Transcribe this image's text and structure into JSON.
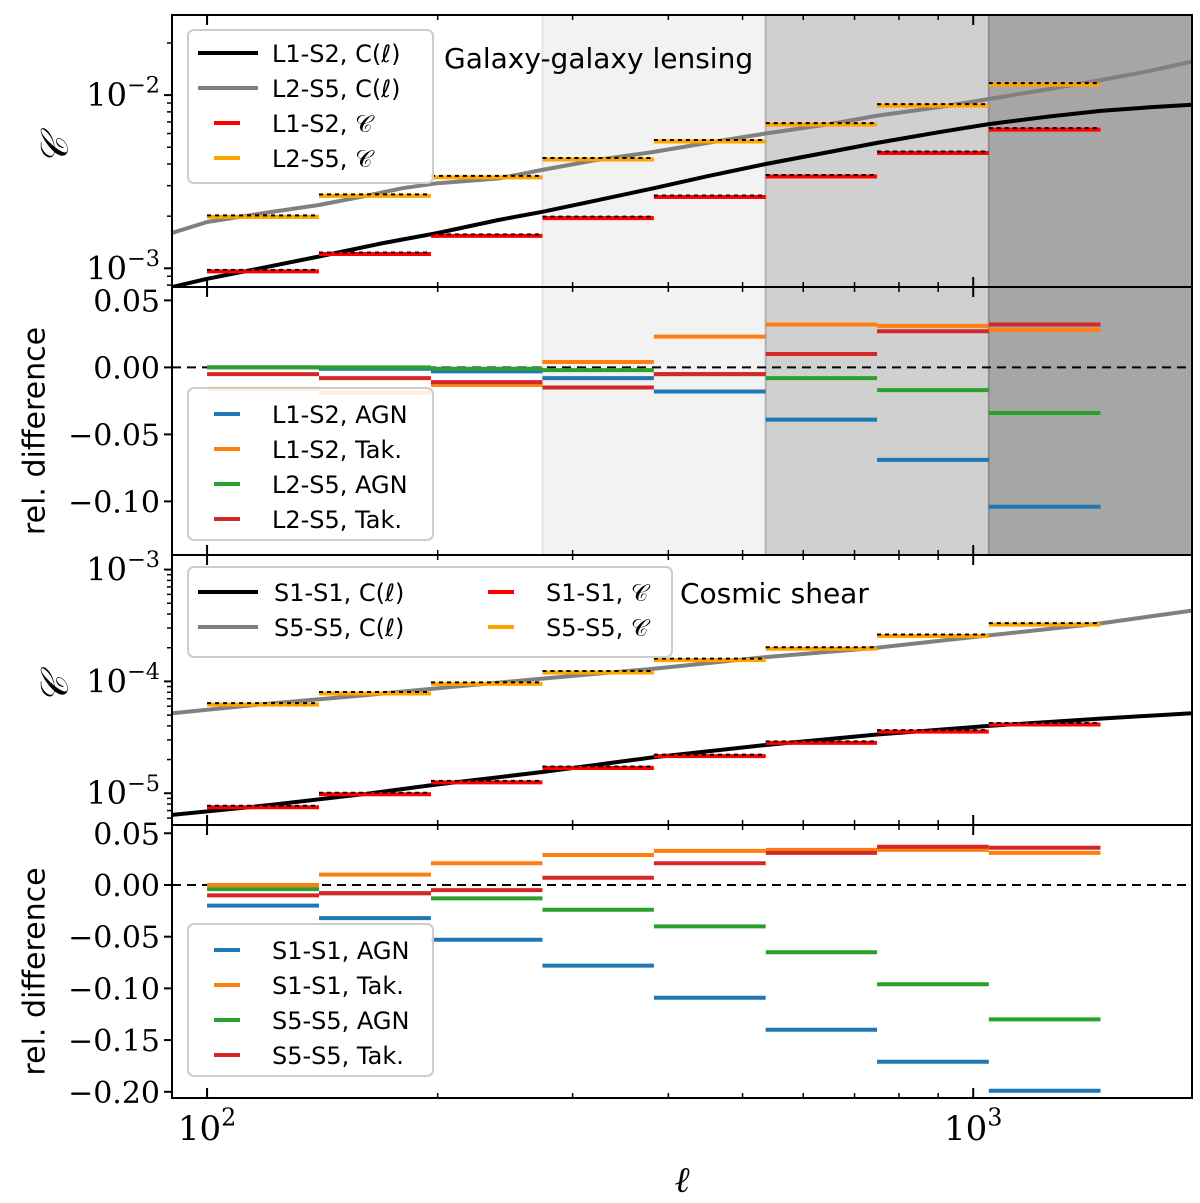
{
  "figure": {
    "xlabel": "ℓ",
    "bin_edges": [
      100,
      140,
      196,
      274,
      383,
      536,
      749,
      1048,
      1466
    ],
    "x_range": [
      90,
      1930
    ],
    "x_ticks": [
      {
        "value": 100,
        "base": "10",
        "exp": "2"
      },
      {
        "value": 1000,
        "base": "10",
        "exp": "3"
      }
    ],
    "shade_regions": [
      {
        "from": 274,
        "to": 536,
        "color": "#f2f2f2"
      },
      {
        "from": 536,
        "to": 1048,
        "color": "#d0d0d0"
      },
      {
        "from": 1048,
        "to": 1930,
        "color": "#a6a6a6"
      }
    ],
    "shade_lines": [
      {
        "x": 274,
        "color": "#e2e2e2"
      },
      {
        "x": 536,
        "color": "#b0b0b0"
      },
      {
        "x": 1048,
        "color": "#8e8e8e"
      }
    ]
  },
  "chart_data": [
    {
      "id": "ggl-main",
      "type": "line",
      "title": "Galaxy-galaxy lensing",
      "ylabel": "𝒞",
      "yscale": "log",
      "ylim": [
        0.00078,
        0.029
      ],
      "y_ticks": [
        {
          "value": 0.001,
          "base": "10",
          "exp": "−3"
        },
        {
          "value": 0.01,
          "base": "10",
          "exp": "−2"
        }
      ],
      "curves": [
        {
          "name": "L1-S2, C(ℓ)",
          "color": "#000000",
          "width": 4,
          "x": [
            90,
            100,
            120,
            140,
            170,
            200,
            240,
            274,
            320,
            383,
            450,
            536,
            650,
            749,
            900,
            1048,
            1250,
            1466,
            1700,
            1930
          ],
          "y": [
            0.00078,
            0.00087,
            0.00102,
            0.00117,
            0.0014,
            0.0016,
            0.0019,
            0.00212,
            0.00245,
            0.0029,
            0.0034,
            0.004,
            0.0047,
            0.0053,
            0.0061,
            0.0068,
            0.0075,
            0.0081,
            0.0085,
            0.0088
          ]
        },
        {
          "name": "L2-S5, C(ℓ)",
          "color": "#808080",
          "width": 4,
          "x": [
            90,
            100,
            120,
            140,
            160,
            180,
            200,
            240,
            274,
            320,
            383,
            450,
            536,
            650,
            749,
            900,
            1048,
            1250,
            1466,
            1700,
            1930
          ],
          "y": [
            0.0016,
            0.00185,
            0.0021,
            0.00232,
            0.0026,
            0.0029,
            0.0031,
            0.0033,
            0.0037,
            0.0042,
            0.0047,
            0.0053,
            0.006,
            0.0068,
            0.0076,
            0.0085,
            0.0095,
            0.0108,
            0.0122,
            0.0138,
            0.0156
          ]
        }
      ],
      "binned": [
        {
          "name": "L1-S2, 𝒞",
          "color": "#ff0000",
          "values": [
            0.00096,
            0.00121,
            0.00154,
            0.00195,
            0.00258,
            0.00339,
            0.00463,
            0.00632
          ]
        },
        {
          "name": "L2-S5, 𝒞",
          "color": "#ffa500",
          "values": [
            0.00198,
            0.00262,
            0.00335,
            0.00425,
            0.0054,
            0.00675,
            0.0087,
            0.0115
          ]
        }
      ],
      "legend": {
        "position": "top-left",
        "ncol": 1
      }
    },
    {
      "id": "ggl-diff",
      "type": "line",
      "ylabel": "rel. difference",
      "ylim": [
        -0.14,
        0.06
      ],
      "y_ticks": [
        {
          "value": 0.05,
          "label": "0.05"
        },
        {
          "value": 0.0,
          "label": "0.00"
        },
        {
          "value": -0.05,
          "label": "−0.05"
        },
        {
          "value": -0.1,
          "label": "−0.10"
        }
      ],
      "series": [
        {
          "name": "L1-S2, AGN",
          "color": "#1f77b4",
          "values": [
            0.0,
            -0.001,
            -0.003,
            -0.008,
            -0.018,
            -0.039,
            -0.069,
            -0.104
          ]
        },
        {
          "name": "L1-S2, Tak.",
          "color": "#ff7f0e",
          "values": [
            -0.016,
            -0.019,
            -0.013,
            0.004,
            0.023,
            0.032,
            0.031,
            0.028
          ]
        },
        {
          "name": "L2-S5, AGN",
          "color": "#2ca02c",
          "values": [
            0.0,
            0.0,
            -0.001,
            -0.002,
            -0.005,
            -0.008,
            -0.017,
            -0.034
          ]
        },
        {
          "name": "L2-S5, Tak.",
          "color": "#d62728",
          "values": [
            -0.005,
            -0.008,
            -0.011,
            -0.015,
            -0.005,
            0.01,
            0.027,
            0.032
          ]
        }
      ],
      "legend": {
        "position": "bottom-left",
        "ncol": 1
      }
    },
    {
      "id": "shear-main",
      "type": "line",
      "title": "Cosmic shear",
      "ylabel": "𝒞",
      "yscale": "log",
      "ylim": [
        5.2e-06,
        0.00135
      ],
      "y_ticks": [
        {
          "value": 1e-05,
          "base": "10",
          "exp": "−5"
        },
        {
          "value": 0.0001,
          "base": "10",
          "exp": "−4"
        },
        {
          "value": 0.001,
          "base": "10",
          "exp": "−3"
        }
      ],
      "curves": [
        {
          "name": "S1-S1, C(ℓ)",
          "color": "#000000",
          "width": 4,
          "x": [
            90,
            120,
            160,
            200,
            274,
            383,
            536,
            749,
            1048,
            1466,
            1930
          ],
          "y": [
            6.4e-06,
            7.8e-06,
            9.8e-06,
            1.2e-05,
            1.55e-05,
            2.1e-05,
            2.7e-05,
            3.35e-05,
            4e-05,
            4.65e-05,
            5.2e-05
          ]
        },
        {
          "name": "S5-S5, C(ℓ)",
          "color": "#808080",
          "width": 4,
          "x": [
            90,
            120,
            160,
            200,
            274,
            383,
            536,
            749,
            1048,
            1466,
            1930
          ],
          "y": [
            5.2e-05,
            6.3e-05,
            7.5e-05,
            8.7e-05,
            0.000106,
            0.00013,
            0.000165,
            0.0002,
            0.000258,
            0.00033,
            0.00043
          ]
        }
      ],
      "binned": [
        {
          "name": "S1-S1, 𝒞",
          "color": "#ff0000",
          "values": [
            7.5e-06,
            9.8e-06,
            1.25e-05,
            1.68e-05,
            2.15e-05,
            2.82e-05,
            3.56e-05,
            4.12e-05
          ]
        },
        {
          "name": "S5-S5, 𝒞",
          "color": "#ffa500",
          "values": [
            6.2e-05,
            7.8e-05,
            9.5e-05,
            0.00012,
            0.000155,
            0.000196,
            0.000255,
            0.000322
          ]
        }
      ],
      "legend": {
        "position": "top-left",
        "ncol": 2
      }
    },
    {
      "id": "shear-diff",
      "type": "line",
      "ylabel": "rel. difference",
      "ylim": [
        -0.206,
        0.058
      ],
      "y_ticks": [
        {
          "value": 0.05,
          "label": "0.05"
        },
        {
          "value": 0.0,
          "label": "0.00"
        },
        {
          "value": -0.05,
          "label": "−0.05"
        },
        {
          "value": -0.1,
          "label": "−0.10"
        },
        {
          "value": -0.15,
          "label": "−0.15"
        },
        {
          "value": -0.2,
          "label": "−0.20"
        }
      ],
      "series": [
        {
          "name": "S1-S1, AGN",
          "color": "#1f77b4",
          "values": [
            -0.02,
            -0.032,
            -0.053,
            -0.078,
            -0.109,
            -0.14,
            -0.171,
            -0.199
          ]
        },
        {
          "name": "S1-S1, Tak.",
          "color": "#ff7f0e",
          "values": [
            0.0,
            0.01,
            0.021,
            0.029,
            0.033,
            0.034,
            0.034,
            0.031
          ]
        },
        {
          "name": "S5-S5, AGN",
          "color": "#2ca02c",
          "values": [
            -0.004,
            -0.008,
            -0.013,
            -0.024,
            -0.04,
            -0.065,
            -0.096,
            -0.13
          ]
        },
        {
          "name": "S5-S5, Tak.",
          "color": "#d62728",
          "values": [
            -0.01,
            -0.008,
            -0.005,
            0.007,
            0.021,
            0.031,
            0.037,
            0.036
          ]
        }
      ],
      "legend": {
        "position": "bottom-left",
        "ncol": 1
      }
    }
  ]
}
